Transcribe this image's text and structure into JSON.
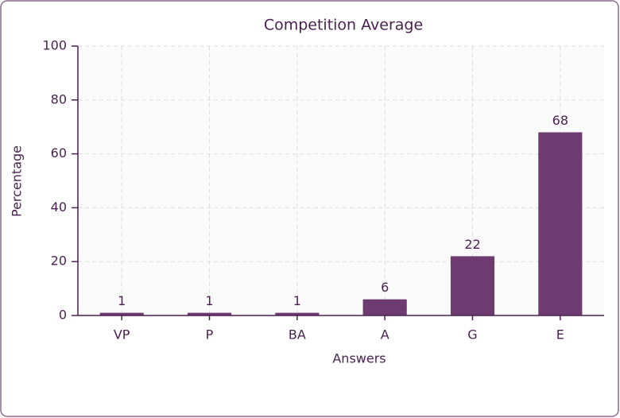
{
  "chart_data": {
    "type": "bar",
    "title": "Competition Average",
    "categories": [
      "VP",
      "P",
      "BA",
      "A",
      "G",
      "E"
    ],
    "values": [
      1,
      1,
      1,
      6,
      22,
      68
    ],
    "color": "#6e3b70",
    "xlabel": "Answers",
    "ylabel": "Percentage",
    "ylim": [
      0,
      100
    ],
    "yticks": [
      0,
      20,
      40,
      60,
      80,
      100
    ],
    "grid": true
  }
}
